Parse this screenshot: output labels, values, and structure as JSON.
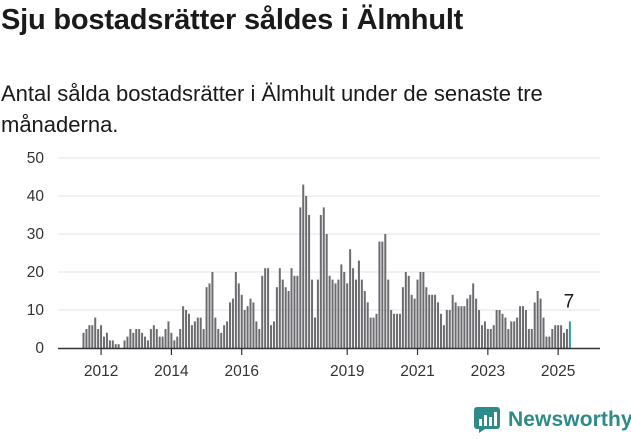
{
  "header": {
    "title": "Sju bostadsrätter såldes i Älmhult",
    "subtitle": "Antal sålda bostadsrätter i Älmhult under de senaste tre månaderna."
  },
  "brand": {
    "name": "Newsworthy",
    "icon": "newsworthy-logo-icon",
    "color": "#2e8b88"
  },
  "colors": {
    "bar": "#6b6b70",
    "highlight": "#2aa198",
    "grid": "#e3e3e3",
    "axis": "#333333"
  },
  "chart_data": {
    "type": "bar",
    "title": "",
    "xlabel": "",
    "ylabel": "",
    "x_start": "2011-07",
    "x_end": "2025-06",
    "ylim": [
      0,
      50
    ],
    "y_ticks": [
      0,
      10,
      20,
      30,
      40,
      50
    ],
    "x_ticks": [
      "2012",
      "2014",
      "2016",
      "2019",
      "2021",
      "2023",
      "2025"
    ],
    "grid": true,
    "last_value_label": "7",
    "values": [
      4,
      5,
      6,
      6,
      8,
      5,
      6,
      3,
      4,
      2,
      2,
      1,
      1,
      0,
      2,
      3,
      5,
      4,
      5,
      5,
      4,
      3,
      2,
      5,
      6,
      5,
      3,
      3,
      5,
      7,
      4,
      2,
      3,
      5,
      11,
      10,
      9,
      6,
      7,
      8,
      8,
      5,
      16,
      17,
      20,
      8,
      5,
      4,
      6,
      7,
      12,
      13,
      20,
      17,
      14,
      10,
      11,
      13,
      12,
      7,
      5,
      19,
      21,
      21,
      6,
      7,
      16,
      21,
      18,
      16,
      15,
      21,
      19,
      19,
      37,
      43,
      40,
      35,
      18,
      8,
      18,
      35,
      37,
      30,
      19,
      18,
      17,
      18,
      22,
      20,
      17,
      26,
      21,
      18,
      23,
      18,
      15,
      12,
      8,
      8,
      9,
      28,
      28,
      30,
      18,
      10,
      9,
      9,
      9,
      16,
      20,
      19,
      14,
      13,
      18,
      20,
      20,
      16,
      14,
      14,
      14,
      12,
      9,
      6,
      10,
      10,
      14,
      12,
      11,
      11,
      11,
      13,
      14,
      17,
      13,
      10,
      6,
      7,
      5,
      5,
      6,
      10,
      10,
      9,
      8,
      5,
      7,
      7,
      8,
      11,
      11,
      10,
      5,
      5,
      12,
      15,
      13,
      8,
      3,
      3,
      5,
      6,
      6,
      6,
      4,
      5,
      7
    ]
  }
}
